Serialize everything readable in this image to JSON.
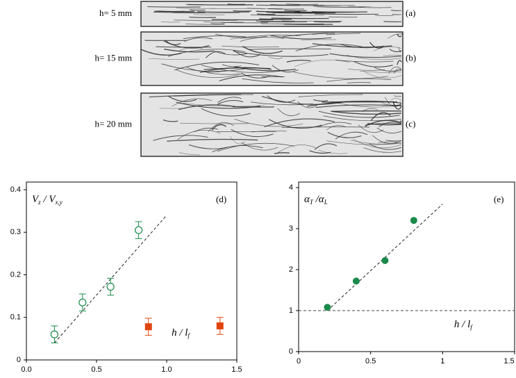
{
  "photos": [
    {
      "label": "h= 5 mm",
      "tag": "(a)"
    },
    {
      "label": "h= 15 mm",
      "tag": "(b)"
    },
    {
      "label": "h= 20 mm",
      "tag": "(c)"
    }
  ],
  "chart_data": [
    {
      "type": "scatter",
      "panel": "(d)",
      "ylabel": [
        "V",
        "z",
        " / V",
        "x,y"
      ],
      "xlabel": [
        "h / l",
        "f"
      ],
      "xlim": [
        0,
        1.5
      ],
      "ylim": [
        0,
        0.4
      ],
      "xticks": [
        {
          "value": 0,
          "label": "0.0"
        },
        {
          "value": 0.5,
          "label": "0.5"
        },
        {
          "value": 1,
          "label": "1.0"
        },
        {
          "value": 1.5,
          "label": "1.5"
        }
      ],
      "yticks": [
        0,
        0.1,
        0.2,
        0.3,
        0.4
      ],
      "series": [
        {
          "color": "#1a8a4a",
          "marker": "open-circle",
          "x": [
            0.2,
            0.4,
            0.6,
            0.8
          ],
          "values": [
            0.06,
            0.135,
            0.172,
            0.305
          ],
          "errors": [
            0.02,
            0.02,
            0.02,
            0.02
          ]
        },
        {
          "color": "#e0450f",
          "marker": "square",
          "x": [
            0.87,
            1.38
          ],
          "values": [
            0.078,
            0.08
          ],
          "errors": [
            0.02,
            0.02
          ]
        }
      ],
      "fit_line": {
        "x": [
          0.2,
          1.0
        ],
        "y": [
          0.04,
          0.34
        ]
      }
    },
    {
      "type": "scatter",
      "panel": "(e)",
      "ylabel": [
        "α",
        "T",
        " /α",
        "L"
      ],
      "xlabel": [
        "h / l",
        "f"
      ],
      "xlim": [
        0,
        1.5
      ],
      "ylim": [
        0,
        4
      ],
      "xticks": [
        0,
        0.5,
        1,
        1.5
      ],
      "yticks": [
        0,
        1,
        2,
        3,
        4
      ],
      "series": [
        {
          "color": "#1a8a4a",
          "marker": "circle",
          "x": [
            0.2,
            0.4,
            0.6,
            0.8
          ],
          "values": [
            1.08,
            1.72,
            2.22,
            3.2
          ]
        }
      ],
      "fit_line": {
        "x": [
          0.2,
          1.0
        ],
        "y": [
          1.0,
          3.6
        ]
      },
      "ref_y": 1
    }
  ]
}
